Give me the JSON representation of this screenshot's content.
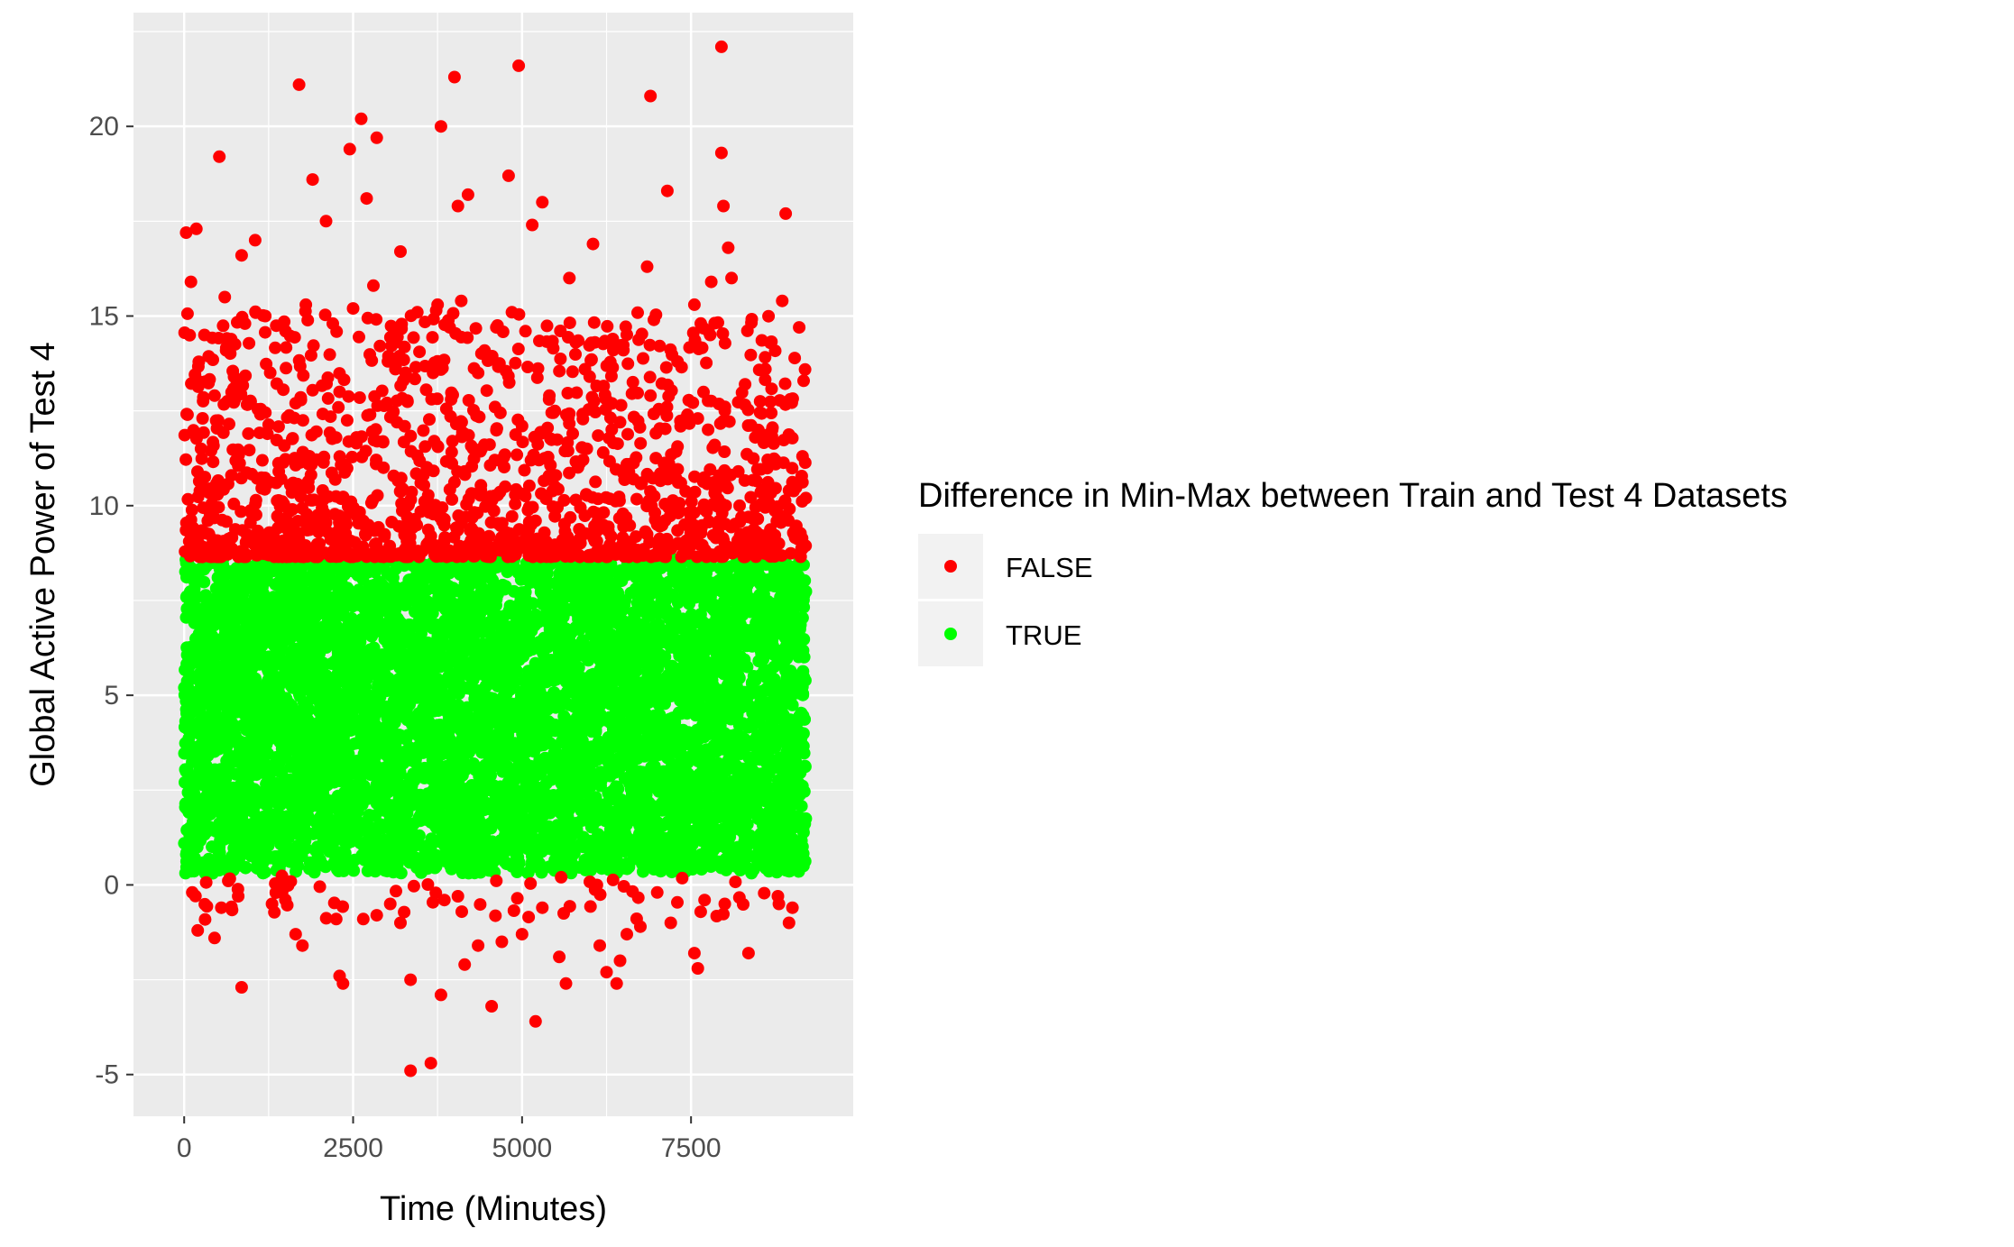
{
  "chart_data": {
    "type": "scatter",
    "title": "",
    "xlabel": "Time (Minutes)",
    "ylabel": "Global Active Power of Test 4",
    "xlim": [
      -750,
      9900
    ],
    "ylim": [
      -6.1,
      23
    ],
    "x_ticks": [
      0,
      2500,
      5000,
      7500
    ],
    "y_ticks": [
      -5,
      0,
      5,
      10,
      15,
      20
    ],
    "grid": true,
    "legend": {
      "title": "Difference in Min-Max between Train and Test 4 Datasets",
      "position": "right",
      "entries": [
        {
          "label": "FALSE",
          "color": "#ff0000"
        },
        {
          "label": "TRUE",
          "color": "#00ff00"
        }
      ]
    },
    "threshold_range": [
      0.3,
      8.6
    ],
    "series": [
      {
        "name": "FALSE",
        "color": "#ff0000",
        "description_of_points": "values above 8.6 or below 0.3",
        "points": [
          [
            30,
            17.2
          ],
          [
            180,
            17.3
          ],
          [
            520,
            19.2
          ],
          [
            850,
            16.6
          ],
          [
            1050,
            17.0
          ],
          [
            1700,
            21.1
          ],
          [
            1900,
            18.6
          ],
          [
            2100,
            17.5
          ],
          [
            2450,
            19.4
          ],
          [
            2620,
            20.2
          ],
          [
            2850,
            19.7
          ],
          [
            2700,
            18.1
          ],
          [
            3200,
            16.7
          ],
          [
            3800,
            20.0
          ],
          [
            4000,
            21.3
          ],
          [
            4200,
            18.2
          ],
          [
            4050,
            17.9
          ],
          [
            4800,
            18.7
          ],
          [
            4950,
            21.6
          ],
          [
            5150,
            17.4
          ],
          [
            5300,
            18.0
          ],
          [
            6050,
            16.9
          ],
          [
            6900,
            20.8
          ],
          [
            6850,
            16.3
          ],
          [
            7150,
            18.3
          ],
          [
            7950,
            22.1
          ],
          [
            7950,
            19.3
          ],
          [
            7980,
            17.9
          ],
          [
            8050,
            16.8
          ],
          [
            8900,
            17.7
          ],
          [
            100,
            15.9
          ],
          [
            300,
            14.5
          ],
          [
            600,
            15.5
          ],
          [
            900,
            14.8
          ],
          [
            1200,
            15.0
          ],
          [
            1500,
            14.6
          ],
          [
            1800,
            15.3
          ],
          [
            2200,
            14.8
          ],
          [
            2500,
            15.2
          ],
          [
            2800,
            15.8
          ],
          [
            3050,
            13.9
          ],
          [
            3450,
            15.1
          ],
          [
            3750,
            15.3
          ],
          [
            4100,
            15.4
          ],
          [
            4350,
            13.5
          ],
          [
            4850,
            15.1
          ],
          [
            5050,
            14.6
          ],
          [
            5400,
            12.8
          ],
          [
            5700,
            16.0
          ],
          [
            6000,
            13.4
          ],
          [
            6500,
            14.1
          ],
          [
            6950,
            14.9
          ],
          [
            7300,
            13.8
          ],
          [
            7550,
            15.3
          ],
          [
            7800,
            15.9
          ],
          [
            8100,
            16.0
          ],
          [
            8300,
            13.2
          ],
          [
            8600,
            13.6
          ],
          [
            8850,
            15.4
          ],
          [
            9100,
            14.7
          ],
          [
            50,
            12.4
          ],
          [
            250,
            11.5
          ],
          [
            450,
            12.9
          ],
          [
            700,
            10.8
          ],
          [
            950,
            11.9
          ],
          [
            1150,
            12.5
          ],
          [
            1400,
            10.9
          ],
          [
            1650,
            12.7
          ],
          [
            1850,
            11.3
          ],
          [
            2050,
            10.4
          ],
          [
            2300,
            13.0
          ],
          [
            2550,
            11.8
          ],
          [
            2750,
            12.4
          ],
          [
            2950,
            11.0
          ],
          [
            3150,
            12.2
          ],
          [
            3500,
            10.6
          ],
          [
            3700,
            11.7
          ],
          [
            3950,
            12.8
          ],
          [
            4150,
            10.9
          ],
          [
            4400,
            11.5
          ],
          [
            4600,
            12.6
          ],
          [
            4750,
            10.5
          ],
          [
            5000,
            12.1
          ],
          [
            5250,
            11.2
          ],
          [
            5500,
            10.8
          ],
          [
            5750,
            11.9
          ],
          [
            5950,
            10.3
          ],
          [
            6200,
            11.4
          ],
          [
            6450,
            12.2
          ],
          [
            6650,
            10.7
          ],
          [
            6900,
            12.9
          ],
          [
            7100,
            11.1
          ],
          [
            7350,
            10.6
          ],
          [
            7600,
            12.3
          ],
          [
            7850,
            11.6
          ],
          [
            8000,
            12.5
          ],
          [
            8200,
            10.9
          ],
          [
            8450,
            11.8
          ],
          [
            8700,
            12.0
          ],
          [
            8950,
            10.4
          ],
          [
            9150,
            11.3
          ],
          [
            9200,
            10.2
          ],
          [
            80,
            9.3
          ],
          [
            350,
            9.6
          ],
          [
            650,
            8.9
          ],
          [
            1000,
            9.8
          ],
          [
            1300,
            9.1
          ],
          [
            1600,
            9.9
          ],
          [
            2000,
            9.0
          ],
          [
            2400,
            9.5
          ],
          [
            2900,
            8.8
          ],
          [
            3300,
            9.7
          ],
          [
            3650,
            9.2
          ],
          [
            4250,
            9.4
          ],
          [
            4700,
            8.9
          ],
          [
            5200,
            9.6
          ],
          [
            5600,
            9.1
          ],
          [
            6100,
            9.8
          ],
          [
            6600,
            9.0
          ],
          [
            7000,
            9.5
          ],
          [
            7450,
            8.8
          ],
          [
            7900,
            9.3
          ],
          [
            8350,
            9.7
          ],
          [
            8800,
            9.0
          ],
          [
            9050,
            9.4
          ],
          [
            120,
            -0.2
          ],
          [
            200,
            -1.2
          ],
          [
            450,
            -1.4
          ],
          [
            550,
            -0.6
          ],
          [
            800,
            -0.3
          ],
          [
            850,
            -2.7
          ],
          [
            1300,
            -0.5
          ],
          [
            1450,
            -0.2
          ],
          [
            1650,
            -1.3
          ],
          [
            1750,
            -1.6
          ],
          [
            2250,
            -0.9
          ],
          [
            2300,
            -2.4
          ],
          [
            2350,
            -2.6
          ],
          [
            2650,
            -0.9
          ],
          [
            2850,
            -0.8
          ],
          [
            3050,
            -0.5
          ],
          [
            3200,
            -1.0
          ],
          [
            3350,
            -2.5
          ],
          [
            3350,
            -4.9
          ],
          [
            3650,
            -4.7
          ],
          [
            3800,
            -2.9
          ],
          [
            3850,
            -0.4
          ],
          [
            4050,
            -0.3
          ],
          [
            4150,
            -2.1
          ],
          [
            4350,
            -1.6
          ],
          [
            4550,
            -3.2
          ],
          [
            4700,
            -1.5
          ],
          [
            5000,
            -1.3
          ],
          [
            5200,
            -3.6
          ],
          [
            5300,
            -0.6
          ],
          [
            5550,
            -1.9
          ],
          [
            5650,
            -2.6
          ],
          [
            6150,
            -1.6
          ],
          [
            6250,
            -2.3
          ],
          [
            6400,
            -2.6
          ],
          [
            6450,
            -2.0
          ],
          [
            6550,
            -1.3
          ],
          [
            6750,
            -1.1
          ],
          [
            7000,
            -0.2
          ],
          [
            7200,
            -1.0
          ],
          [
            7550,
            -1.8
          ],
          [
            7600,
            -2.2
          ],
          [
            7700,
            -0.4
          ],
          [
            8000,
            -0.5
          ],
          [
            8350,
            -1.8
          ],
          [
            8800,
            -0.5
          ],
          [
            8950,
            -1.0
          ],
          [
            9000,
            -0.6
          ]
        ]
      },
      {
        "name": "TRUE",
        "color": "#00ff00",
        "description_of_points": "values between 0.3 and 8.6 (dense band across all times 0-9200)",
        "x_range": [
          0,
          9200
        ],
        "y_range": [
          0.3,
          8.6
        ]
      }
    ]
  }
}
